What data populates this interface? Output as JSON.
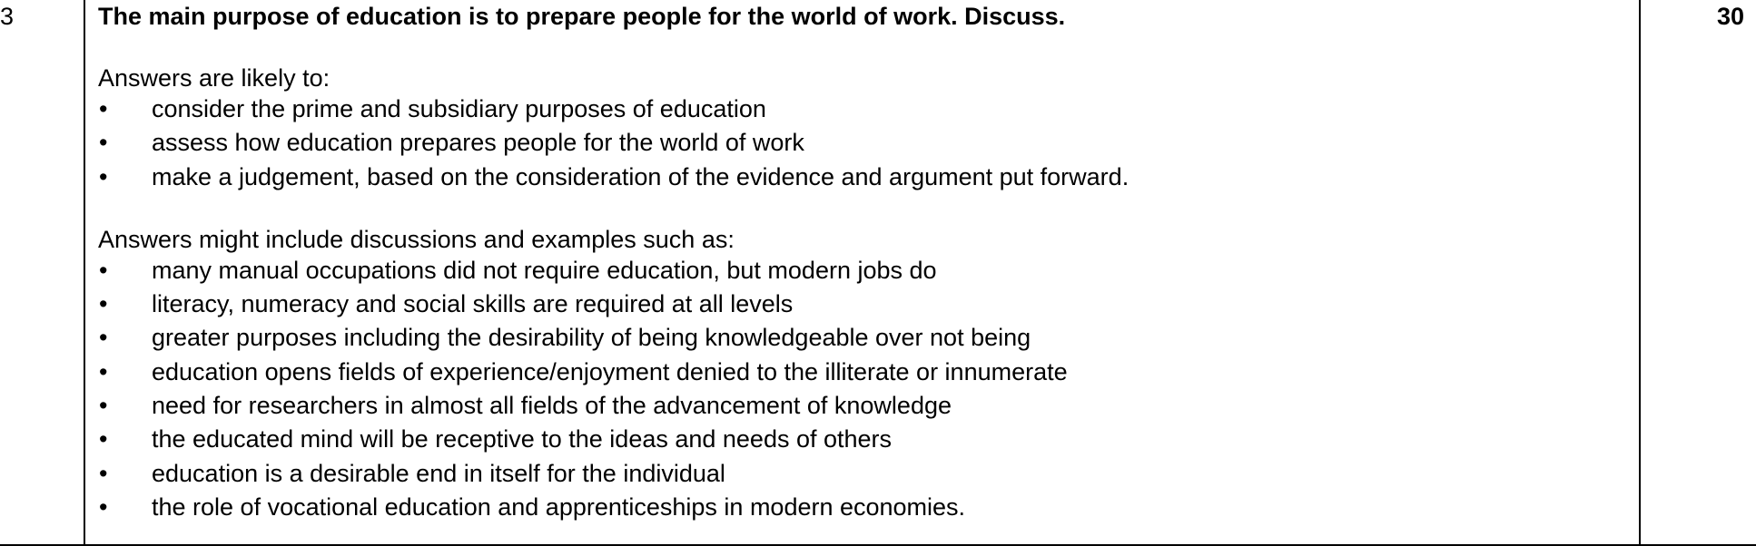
{
  "question": {
    "number": "3",
    "title": "The main purpose of education is to prepare people for the world of work. Discuss.",
    "marks": "30"
  },
  "likely": {
    "intro": "Answers are likely to:",
    "items": [
      "consider the prime and subsidiary purposes of education",
      "assess how education prepares people for the world of work",
      "make a judgement, based on the consideration of the evidence and argument put forward."
    ]
  },
  "examples": {
    "intro": "Answers might include discussions and examples such as:",
    "items": [
      "many manual occupations did not require education, but modern jobs do",
      "literacy, numeracy and social skills are required at all levels",
      "greater purposes including the desirability of being knowledgeable over not being",
      "education opens fields of experience/enjoyment denied to the illiterate or innumerate",
      "need for researchers in almost all fields of the advancement of knowledge",
      "the educated mind will be receptive to the ideas and needs of others",
      "education is a desirable end in itself for the individual",
      "the role of vocational education and apprenticeships in modern economies."
    ]
  },
  "bullet_glyph": "•"
}
